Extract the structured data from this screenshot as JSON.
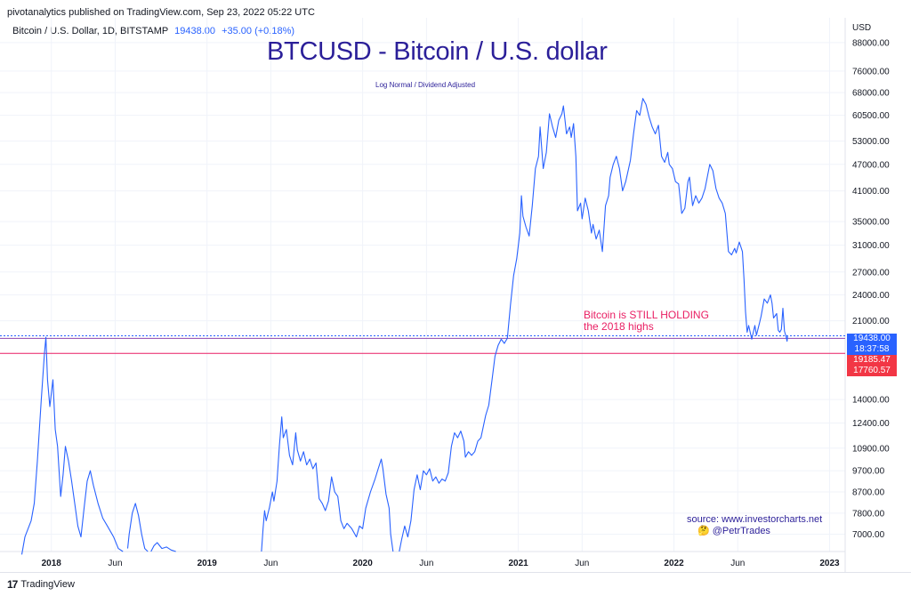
{
  "publisher": "pivotanalytics published on TradingView.com, Sep 23, 2022 05:22 UTC",
  "symbol": {
    "name": "Bitcoin / U.S. Dollar, 1D, BITSTAMP",
    "last_price": "19438.00",
    "change": "+35.00 (+0.18%)"
  },
  "title": "BTCUSD - Bitcoin / U.S. dollar",
  "subtitle": "Log Normal / Dividend Adjusted",
  "currency": "USD",
  "annotation": {
    "line1": "Bitcoin is STILL HOLDING",
    "line2": "the 2018 highs"
  },
  "source": {
    "line1": "source: www.investorcharts.net",
    "line2": "@PetrTrades"
  },
  "price_tags": {
    "current": "19438.00",
    "countdown": "18:37:58",
    "line_a": "19185.47",
    "line_b": "17760.57"
  },
  "footer": {
    "brand": "TradingView"
  },
  "colors": {
    "series": "#2962ff",
    "title": "#2b1f99",
    "annotation": "#e91e63",
    "level": "#f23645"
  },
  "chart_data": {
    "type": "line",
    "title": "BTCUSD - Bitcoin / U.S. dollar",
    "scale": "log",
    "grid": true,
    "ylim": [
      6400,
      100000
    ],
    "y_ticks": [
      7000,
      7800,
      8700,
      9700,
      10900,
      12400,
      14000,
      21000,
      24000,
      27000,
      31000,
      35000,
      41000,
      47000,
      53000,
      60500,
      68000,
      76000,
      88000
    ],
    "y_tick_labels": [
      "7000.00",
      "7800.00",
      "8700.00",
      "9700.00",
      "10900.00",
      "12400.00",
      "14000.00",
      "21000.00",
      "24000.00",
      "27000.00",
      "31000.00",
      "35000.00",
      "41000.00",
      "47000.00",
      "53000.00",
      "60500.00",
      "68000.00",
      "76000.00",
      "88000.00"
    ],
    "x_ticks": [
      {
        "t": 2018.0,
        "label": "2018",
        "bold": true
      },
      {
        "t": 2018.41,
        "label": "Jun",
        "bold": false
      },
      {
        "t": 2019.0,
        "label": "2019",
        "bold": true
      },
      {
        "t": 2019.41,
        "label": "Jun",
        "bold": false
      },
      {
        "t": 2020.0,
        "label": "2020",
        "bold": true
      },
      {
        "t": 2020.41,
        "label": "Jun",
        "bold": false
      },
      {
        "t": 2021.0,
        "label": "2021",
        "bold": true
      },
      {
        "t": 2021.41,
        "label": "Jun",
        "bold": false
      },
      {
        "t": 2022.0,
        "label": "2022",
        "bold": true
      },
      {
        "t": 2022.41,
        "label": "Jun",
        "bold": false
      },
      {
        "t": 2023.0,
        "label": "2023",
        "bold": true
      }
    ],
    "levels": [
      19438,
      19185.47,
      17760.57
    ],
    "series": [
      {
        "points": [
          [
            2017.81,
            6300
          ],
          [
            2017.83,
            6900
          ],
          [
            2017.87,
            7500
          ],
          [
            2017.89,
            8200
          ],
          [
            2017.91,
            10200
          ],
          [
            2017.935,
            14000
          ],
          [
            2017.955,
            17700
          ],
          [
            2017.965,
            19300
          ],
          [
            2017.975,
            15500
          ],
          [
            2017.99,
            13500
          ],
          [
            2018.01,
            15500
          ],
          [
            2018.025,
            12000
          ],
          [
            2018.04,
            11000
          ],
          [
            2018.06,
            8500
          ],
          [
            2018.075,
            9500
          ],
          [
            2018.09,
            11000
          ],
          [
            2018.11,
            10200
          ],
          [
            2018.13,
            9200
          ],
          [
            2018.15,
            8200
          ],
          [
            2018.17,
            7300
          ],
          [
            2018.19,
            6900
          ],
          [
            2018.21,
            8000
          ],
          [
            2018.23,
            9200
          ],
          [
            2018.25,
            9700
          ],
          [
            2018.27,
            9000
          ],
          [
            2018.3,
            8200
          ],
          [
            2018.33,
            7600
          ],
          [
            2018.36,
            7300
          ],
          [
            2018.4,
            6900
          ],
          [
            2018.43,
            6500
          ],
          [
            2018.46,
            6400
          ]
        ]
      },
      {
        "points": [
          [
            2018.49,
            6500
          ],
          [
            2018.5,
            7000
          ],
          [
            2018.52,
            7800
          ],
          [
            2018.54,
            8200
          ],
          [
            2018.56,
            7700
          ],
          [
            2018.58,
            7000
          ],
          [
            2018.6,
            6500
          ],
          [
            2018.62,
            6400
          ]
        ]
      },
      {
        "points": [
          [
            2018.64,
            6400
          ],
          [
            2018.66,
            6600
          ],
          [
            2018.68,
            6700
          ],
          [
            2018.71,
            6500
          ],
          [
            2018.74,
            6550
          ],
          [
            2018.77,
            6450
          ],
          [
            2018.8,
            6400
          ]
        ]
      },
      {
        "points": [
          [
            2019.35,
            6400
          ],
          [
            2019.36,
            7200
          ],
          [
            2019.37,
            7900
          ],
          [
            2019.38,
            7500
          ],
          [
            2019.4,
            8000
          ],
          [
            2019.42,
            8700
          ],
          [
            2019.43,
            8300
          ],
          [
            2019.45,
            9200
          ],
          [
            2019.465,
            11000
          ],
          [
            2019.48,
            12800
          ],
          [
            2019.49,
            11500
          ],
          [
            2019.51,
            12000
          ],
          [
            2019.53,
            10500
          ],
          [
            2019.55,
            10000
          ],
          [
            2019.57,
            11800
          ],
          [
            2019.58,
            10800
          ],
          [
            2019.6,
            10200
          ],
          [
            2019.62,
            10700
          ],
          [
            2019.64,
            10000
          ],
          [
            2019.66,
            10300
          ],
          [
            2019.68,
            9800
          ],
          [
            2019.7,
            10100
          ],
          [
            2019.72,
            8400
          ],
          [
            2019.74,
            8200
          ],
          [
            2019.76,
            7900
          ],
          [
            2019.78,
            8300
          ],
          [
            2019.8,
            9400
          ],
          [
            2019.82,
            8700
          ],
          [
            2019.84,
            8500
          ],
          [
            2019.86,
            7500
          ],
          [
            2019.88,
            7200
          ],
          [
            2019.9,
            7400
          ],
          [
            2019.93,
            7200
          ],
          [
            2019.96,
            6900
          ],
          [
            2019.98,
            7300
          ],
          [
            2020.0,
            7200
          ],
          [
            2020.02,
            8000
          ],
          [
            2020.05,
            8700
          ],
          [
            2020.08,
            9300
          ],
          [
            2020.1,
            9800
          ],
          [
            2020.12,
            10300
          ],
          [
            2020.13,
            9800
          ],
          [
            2020.15,
            8600
          ],
          [
            2020.17,
            8000
          ],
          [
            2020.18,
            7000
          ],
          [
            2020.195,
            6400
          ]
        ]
      },
      {
        "points": [
          [
            2020.235,
            6400
          ],
          [
            2020.25,
            6800
          ],
          [
            2020.27,
            7300
          ],
          [
            2020.29,
            6900
          ],
          [
            2020.31,
            7500
          ],
          [
            2020.33,
            8800
          ],
          [
            2020.35,
            9500
          ],
          [
            2020.37,
            8800
          ],
          [
            2020.39,
            9700
          ],
          [
            2020.41,
            9500
          ],
          [
            2020.43,
            9800
          ],
          [
            2020.45,
            9200
          ],
          [
            2020.47,
            9400
          ],
          [
            2020.49,
            9100
          ],
          [
            2020.51,
            9300
          ],
          [
            2020.53,
            9200
          ],
          [
            2020.55,
            9600
          ],
          [
            2020.57,
            11000
          ],
          [
            2020.59,
            11800
          ],
          [
            2020.61,
            11500
          ],
          [
            2020.63,
            11900
          ],
          [
            2020.65,
            11300
          ],
          [
            2020.66,
            10400
          ],
          [
            2020.68,
            10700
          ],
          [
            2020.7,
            10500
          ],
          [
            2020.72,
            10700
          ],
          [
            2020.74,
            11300
          ],
          [
            2020.76,
            11500
          ],
          [
            2020.79,
            12900
          ],
          [
            2020.81,
            13600
          ],
          [
            2020.83,
            15400
          ],
          [
            2020.85,
            17500
          ],
          [
            2020.87,
            18500
          ],
          [
            2020.89,
            19100
          ],
          [
            2020.91,
            18700
          ],
          [
            2020.93,
            19200
          ],
          [
            2020.95,
            22800
          ],
          [
            2020.97,
            26500
          ],
          [
            2020.99,
            28900
          ],
          [
            2021.01,
            33000
          ],
          [
            2021.02,
            40000
          ],
          [
            2021.03,
            36000
          ],
          [
            2021.05,
            34000
          ],
          [
            2021.07,
            32500
          ],
          [
            2021.09,
            38000
          ],
          [
            2021.11,
            46000
          ],
          [
            2021.13,
            49000
          ],
          [
            2021.14,
            57000
          ],
          [
            2021.16,
            46000
          ],
          [
            2021.18,
            50000
          ],
          [
            2021.19,
            55000
          ],
          [
            2021.2,
            61000
          ],
          [
            2021.22,
            57000
          ],
          [
            2021.24,
            54000
          ],
          [
            2021.26,
            59000
          ],
          [
            2021.28,
            61000
          ],
          [
            2021.29,
            63500
          ],
          [
            2021.31,
            55000
          ],
          [
            2021.33,
            57000
          ],
          [
            2021.34,
            54000
          ],
          [
            2021.355,
            58000
          ],
          [
            2021.37,
            49000
          ],
          [
            2021.38,
            37000
          ],
          [
            2021.4,
            38500
          ],
          [
            2021.41,
            35500
          ],
          [
            2021.43,
            39500
          ],
          [
            2021.45,
            37000
          ],
          [
            2021.47,
            33000
          ],
          [
            2021.48,
            34500
          ],
          [
            2021.5,
            32000
          ],
          [
            2021.52,
            33500
          ],
          [
            2021.54,
            30000
          ],
          [
            2021.56,
            38000
          ],
          [
            2021.58,
            40000
          ],
          [
            2021.59,
            44000
          ],
          [
            2021.61,
            47000
          ],
          [
            2021.63,
            49000
          ],
          [
            2021.65,
            46000
          ],
          [
            2021.67,
            41000
          ],
          [
            2021.69,
            43000
          ],
          [
            2021.72,
            48000
          ],
          [
            2021.74,
            55000
          ],
          [
            2021.76,
            62000
          ],
          [
            2021.78,
            60500
          ],
          [
            2021.8,
            66000
          ],
          [
            2021.82,
            64000
          ],
          [
            2021.84,
            60000
          ],
          [
            2021.86,
            57000
          ],
          [
            2021.88,
            55000
          ],
          [
            2021.9,
            57500
          ],
          [
            2021.92,
            49000
          ],
          [
            2021.94,
            47500
          ],
          [
            2021.96,
            50000
          ],
          [
            2021.97,
            47000
          ],
          [
            2021.99,
            46000
          ],
          [
            2022.01,
            43000
          ],
          [
            2022.03,
            42500
          ],
          [
            2022.05,
            36500
          ],
          [
            2022.07,
            37500
          ],
          [
            2022.09,
            43000
          ],
          [
            2022.1,
            44000
          ],
          [
            2022.12,
            38000
          ],
          [
            2022.14,
            40000
          ],
          [
            2022.16,
            38500
          ],
          [
            2022.18,
            39500
          ],
          [
            2022.2,
            41500
          ],
          [
            2022.23,
            47000
          ],
          [
            2022.25,
            45500
          ],
          [
            2022.27,
            41500
          ],
          [
            2022.29,
            39500
          ],
          [
            2022.31,
            38500
          ],
          [
            2022.33,
            36500
          ],
          [
            2022.35,
            30000
          ],
          [
            2022.37,
            29500
          ],
          [
            2022.39,
            30500
          ],
          [
            2022.4,
            29800
          ],
          [
            2022.42,
            31500
          ],
          [
            2022.44,
            30000
          ],
          [
            2022.45,
            26000
          ],
          [
            2022.46,
            22000
          ],
          [
            2022.47,
            19800
          ],
          [
            2022.48,
            20500
          ],
          [
            2022.5,
            19100
          ],
          [
            2022.52,
            20500
          ],
          [
            2022.53,
            19500
          ],
          [
            2022.55,
            20800
          ],
          [
            2022.56,
            21500
          ],
          [
            2022.58,
            23500
          ],
          [
            2022.6,
            23000
          ],
          [
            2022.62,
            24000
          ],
          [
            2022.63,
            23000
          ],
          [
            2022.64,
            21300
          ],
          [
            2022.66,
            21800
          ],
          [
            2022.67,
            20000
          ],
          [
            2022.68,
            19800
          ],
          [
            2022.69,
            20100
          ],
          [
            2022.7,
            22400
          ],
          [
            2022.71,
            19900
          ],
          [
            2022.72,
            19400
          ],
          [
            2022.727,
            18900
          ],
          [
            2022.73,
            19438
          ]
        ]
      }
    ]
  }
}
